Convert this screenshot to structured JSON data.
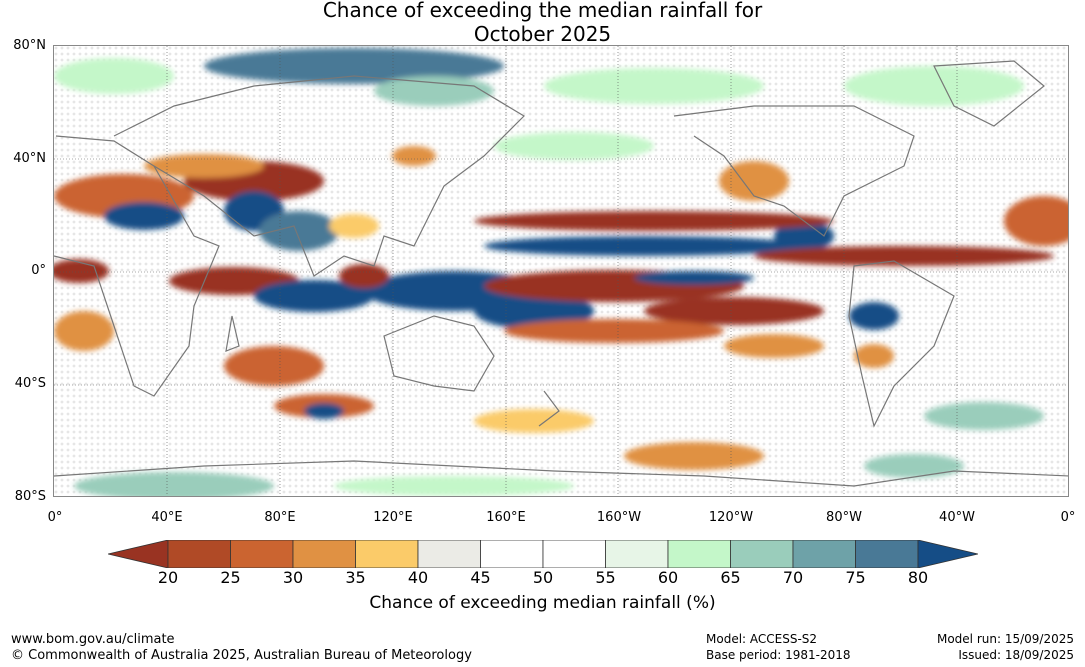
{
  "title": {
    "line1": "Chance of exceeding the median rainfall for",
    "line2": "October 2025"
  },
  "map": {
    "lat_labels": [
      "80°N",
      "40°N",
      "0°",
      "40°S",
      "80°S"
    ],
    "lon_labels": [
      "0°",
      "40°E",
      "80°E",
      "120°E",
      "160°E",
      "160°W",
      "120°W",
      "80°W",
      "40°W",
      "0°"
    ],
    "ocean_color": "#ffffff",
    "coast_color": "#777777"
  },
  "colorbar": {
    "ticks": [
      "20",
      "25",
      "30",
      "35",
      "40",
      "45",
      "50",
      "55",
      "60",
      "65",
      "70",
      "75",
      "80"
    ],
    "colors": [
      "#993322",
      "#b04a26",
      "#cb6430",
      "#e09143",
      "#fbcb69",
      "#ebebe6",
      "#ffffff",
      "#ffffff",
      "#e7f5e7",
      "#c4f7c9",
      "#9acdbb",
      "#6ea2a8",
      "#497996",
      "#154d86"
    ],
    "label": "Chance of exceeding median rainfall (%)"
  },
  "footer": {
    "url": "www.bom.gov.au/climate",
    "copyright": "© Commonwealth of Australia 2025, Australian Bureau of Meteorology",
    "model": "Model: ACCESS-S2",
    "base_period": "Base period: 1981-2018",
    "model_run": "Model run: 15/09/2025",
    "issued": "Issued: 18/09/2025"
  }
}
